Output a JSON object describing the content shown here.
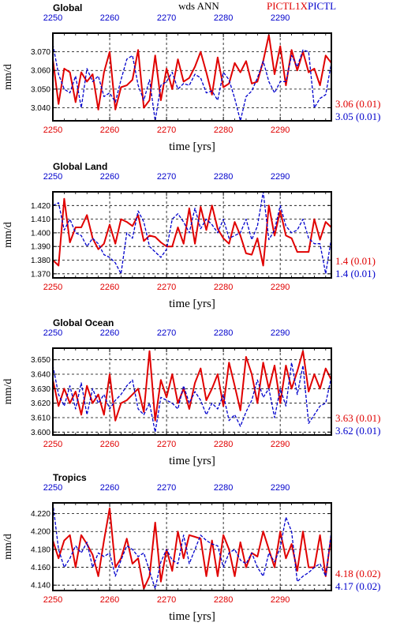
{
  "header": {
    "center_title": "wds ANN",
    "legend_red": "PICTL1X",
    "legend_blue": "PICTL"
  },
  "colors": {
    "red": "#e00000",
    "blue": "#0000cc",
    "frame": "#000000",
    "grid": "#000000"
  },
  "chart_data": [
    {
      "type": "line",
      "title": "Global",
      "xlabel": "time [yrs]",
      "ylabel": "mm/d",
      "xlim": [
        2250,
        2299
      ],
      "ylim": [
        3.033,
        3.08
      ],
      "xticks": [
        2250,
        2260,
        2270,
        2280,
        2290
      ],
      "yticks": [
        3.04,
        3.05,
        3.06,
        3.07
      ],
      "ytick_labels": [
        "3.040",
        "3.050",
        "3.060",
        "3.070"
      ],
      "grid": true,
      "x_start": 2250,
      "series": [
        {
          "name": "PICTL1X",
          "color": "#e00000",
          "dash": "solid",
          "stat": "3.06 (0.01)",
          "values": [
            3.066,
            3.042,
            3.061,
            3.059,
            3.043,
            3.059,
            3.054,
            3.058,
            3.039,
            3.059,
            3.07,
            3.039,
            3.051,
            3.052,
            3.055,
            3.071,
            3.04,
            3.044,
            3.068,
            3.044,
            3.061,
            3.05,
            3.066,
            3.054,
            3.056,
            3.062,
            3.07,
            3.059,
            3.047,
            3.067,
            3.051,
            3.053,
            3.064,
            3.059,
            3.065,
            3.053,
            3.054,
            3.065,
            3.079,
            3.058,
            3.073,
            3.052,
            3.071,
            3.06,
            3.07,
            3.059,
            3.061,
            3.052,
            3.068,
            3.064
          ]
        },
        {
          "name": "PICTL",
          "color": "#0000cc",
          "dash": "dashed",
          "stat": "3.05 (0.01)",
          "values": [
            3.074,
            3.058,
            3.05,
            3.048,
            3.057,
            3.04,
            3.061,
            3.054,
            3.057,
            3.046,
            3.048,
            3.043,
            3.055,
            3.066,
            3.068,
            3.052,
            3.044,
            3.055,
            3.033,
            3.052,
            3.054,
            3.059,
            3.05,
            3.053,
            3.052,
            3.058,
            3.056,
            3.048,
            3.049,
            3.044,
            3.059,
            3.055,
            3.045,
            3.033,
            3.046,
            3.049,
            3.056,
            3.065,
            3.054,
            3.048,
            3.054,
            3.054,
            3.068,
            3.062,
            3.071,
            3.07,
            3.04,
            3.045,
            3.047,
            3.064
          ]
        }
      ]
    },
    {
      "type": "line",
      "title": "Global Land",
      "xlabel": "time [yrs]",
      "ylabel": "mm/d",
      "xlim": [
        2250,
        2299
      ],
      "ylim": [
        1.367,
        1.43
      ],
      "xticks": [
        2250,
        2260,
        2270,
        2280,
        2290
      ],
      "yticks": [
        1.37,
        1.38,
        1.39,
        1.4,
        1.41,
        1.42
      ],
      "ytick_labels": [
        "1.370",
        "1.380",
        "1.390",
        "1.400",
        "1.410",
        "1.420"
      ],
      "grid": true,
      "x_start": 2250,
      "series": [
        {
          "name": "PICTL1X",
          "color": "#e00000",
          "dash": "solid",
          "stat": "1.4 (0.01)",
          "values": [
            1.38,
            1.376,
            1.425,
            1.393,
            1.404,
            1.404,
            1.413,
            1.396,
            1.388,
            1.392,
            1.406,
            1.392,
            1.41,
            1.408,
            1.405,
            1.413,
            1.394,
            1.398,
            1.397,
            1.393,
            1.39,
            1.39,
            1.404,
            1.392,
            1.418,
            1.392,
            1.419,
            1.402,
            1.42,
            1.403,
            1.396,
            1.392,
            1.408,
            1.398,
            1.385,
            1.384,
            1.396,
            1.376,
            1.42,
            1.398,
            1.416,
            1.398,
            1.396,
            1.386,
            1.386,
            1.386,
            1.41,
            1.395,
            1.408,
            1.404
          ]
        },
        {
          "name": "PICTL",
          "color": "#0000cc",
          "dash": "dashed",
          "stat": "1.4 (0.01)",
          "values": [
            1.42,
            1.422,
            1.402,
            1.41,
            1.4,
            1.398,
            1.39,
            1.396,
            1.392,
            1.384,
            1.382,
            1.378,
            1.37,
            1.4,
            1.396,
            1.416,
            1.408,
            1.39,
            1.386,
            1.382,
            1.388,
            1.41,
            1.414,
            1.408,
            1.4,
            1.418,
            1.403,
            1.41,
            1.406,
            1.4,
            1.41,
            1.396,
            1.398,
            1.4,
            1.41,
            1.395,
            1.405,
            1.43,
            1.395,
            1.402,
            1.42,
            1.405,
            1.4,
            1.402,
            1.41,
            1.396,
            1.392,
            1.392,
            1.37,
            1.396
          ]
        }
      ]
    },
    {
      "type": "line",
      "title": "Global Ocean",
      "xlabel": "time [yrs]",
      "ylabel": "mm/d",
      "xlim": [
        2250,
        2299
      ],
      "ylim": [
        3.598,
        3.658
      ],
      "xticks": [
        2250,
        2260,
        2270,
        2280,
        2290
      ],
      "yticks": [
        3.6,
        3.61,
        3.62,
        3.63,
        3.64,
        3.65
      ],
      "ytick_labels": [
        "3.600",
        "3.610",
        "3.620",
        "3.630",
        "3.640",
        "3.650"
      ],
      "grid": true,
      "x_start": 2250,
      "series": [
        {
          "name": "PICTL1X",
          "color": "#e00000",
          "dash": "solid",
          "stat": "3.63 (0.01)",
          "values": [
            3.636,
            3.618,
            3.63,
            3.62,
            3.628,
            3.612,
            3.632,
            3.62,
            3.626,
            3.612,
            3.64,
            3.608,
            3.62,
            3.622,
            3.626,
            3.63,
            3.614,
            3.656,
            3.608,
            3.636,
            3.624,
            3.64,
            3.62,
            3.63,
            3.616,
            3.634,
            3.644,
            3.622,
            3.63,
            3.64,
            3.618,
            3.648,
            3.632,
            3.615,
            3.652,
            3.64,
            3.62,
            3.648,
            3.63,
            3.646,
            3.62,
            3.646,
            3.63,
            3.642,
            3.656,
            3.628,
            3.64,
            3.63,
            3.644,
            3.636
          ]
        },
        {
          "name": "PICTL",
          "color": "#0000cc",
          "dash": "dashed",
          "stat": "3.62 (0.01)",
          "values": [
            3.646,
            3.626,
            3.618,
            3.632,
            3.616,
            3.634,
            3.612,
            3.63,
            3.62,
            3.626,
            3.616,
            3.622,
            3.626,
            3.632,
            3.636,
            3.616,
            3.612,
            3.62,
            3.6,
            3.624,
            3.622,
            3.62,
            3.616,
            3.632,
            3.62,
            3.628,
            3.622,
            3.612,
            3.62,
            3.616,
            3.626,
            3.608,
            3.612,
            3.604,
            3.614,
            3.622,
            3.636,
            3.624,
            3.63,
            3.61,
            3.63,
            3.618,
            3.648,
            3.626,
            3.646,
            3.606,
            3.612,
            3.618,
            3.62,
            3.638
          ]
        }
      ]
    },
    {
      "type": "line",
      "title": "Tropics",
      "xlabel": "time [yrs]",
      "ylabel": "mm/d",
      "xlim": [
        2250,
        2299
      ],
      "ylim": [
        4.134,
        4.232
      ],
      "xticks": [
        2250,
        2260,
        2270,
        2280,
        2290
      ],
      "yticks": [
        4.14,
        4.16,
        4.18,
        4.2,
        4.22
      ],
      "ytick_labels": [
        "4.140",
        "4.160",
        "4.180",
        "4.200",
        "4.220"
      ],
      "grid": true,
      "x_start": 2250,
      "series": [
        {
          "name": "PICTL1X",
          "color": "#e00000",
          "dash": "solid",
          "stat": "4.18 (0.02)",
          "values": [
            4.19,
            4.17,
            4.19,
            4.196,
            4.16,
            4.196,
            4.186,
            4.174,
            4.15,
            4.19,
            4.226,
            4.16,
            4.17,
            4.192,
            4.164,
            4.17,
            4.136,
            4.15,
            4.21,
            4.144,
            4.18,
            4.156,
            4.2,
            4.17,
            4.196,
            4.194,
            4.192,
            4.15,
            4.19,
            4.15,
            4.196,
            4.18,
            4.15,
            4.188,
            4.16,
            4.176,
            4.172,
            4.2,
            4.18,
            4.16,
            4.2,
            4.17,
            4.186,
            4.156,
            4.2,
            4.16,
            4.16,
            4.196,
            4.15,
            4.196
          ]
        },
        {
          "name": "PICTL",
          "color": "#0000cc",
          "dash": "dashed",
          "stat": "4.17 (0.02)",
          "values": [
            4.232,
            4.18,
            4.16,
            4.17,
            4.184,
            4.176,
            4.188,
            4.16,
            4.176,
            4.172,
            4.176,
            4.15,
            4.168,
            4.184,
            4.18,
            4.172,
            4.176,
            4.156,
            4.136,
            4.166,
            4.18,
            4.168,
            4.164,
            4.196,
            4.164,
            4.18,
            4.196,
            4.19,
            4.186,
            4.184,
            4.16,
            4.176,
            4.18,
            4.168,
            4.164,
            4.176,
            4.16,
            4.15,
            4.176,
            4.166,
            4.182,
            4.216,
            4.2,
            4.144,
            4.15,
            4.154,
            4.16,
            4.164,
            4.15,
            4.2
          ]
        }
      ]
    }
  ]
}
